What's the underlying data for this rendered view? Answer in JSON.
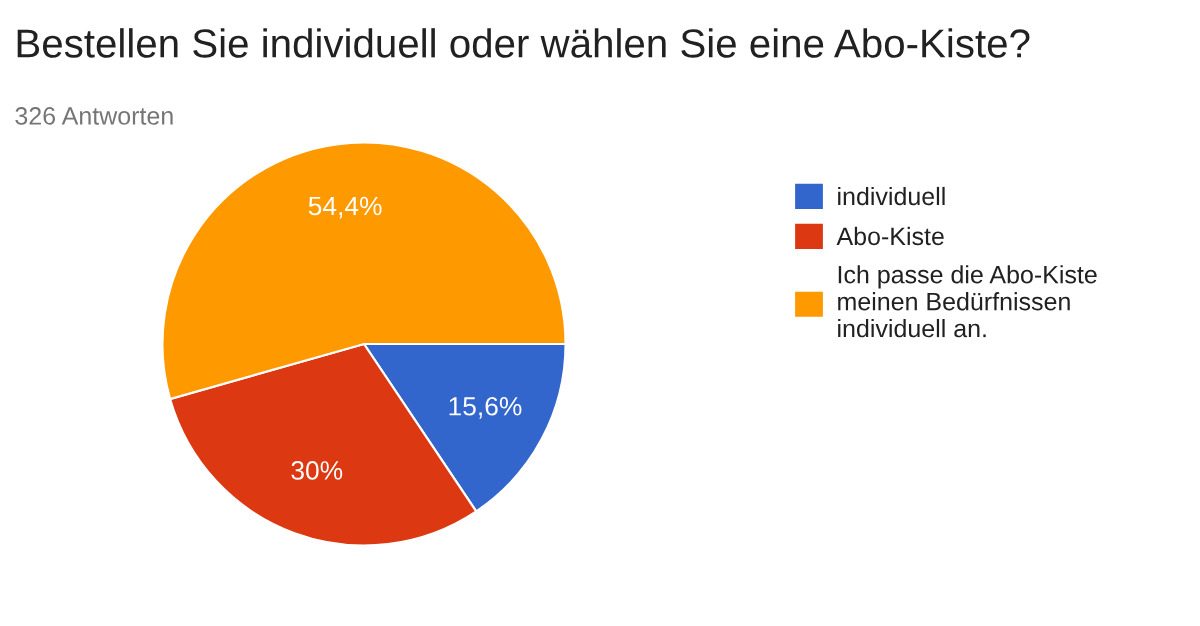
{
  "chart_data": {
    "type": "pie",
    "title": "Bestellen Sie individuell oder wählen Sie eine Abo-Kiste?",
    "subtitle": "326 Antworten",
    "categories": [
      "individuell",
      "Abo-Kiste",
      "Ich passe die Abo-Kiste meinen Bedürfnissen individuell an."
    ],
    "values": [
      15.6,
      30,
      54.4
    ],
    "value_labels": [
      "15,6%",
      "30%",
      "54,4%"
    ],
    "colors": [
      "#3366cc",
      "#dc3912",
      "#ff9900"
    ],
    "legend": "right"
  }
}
